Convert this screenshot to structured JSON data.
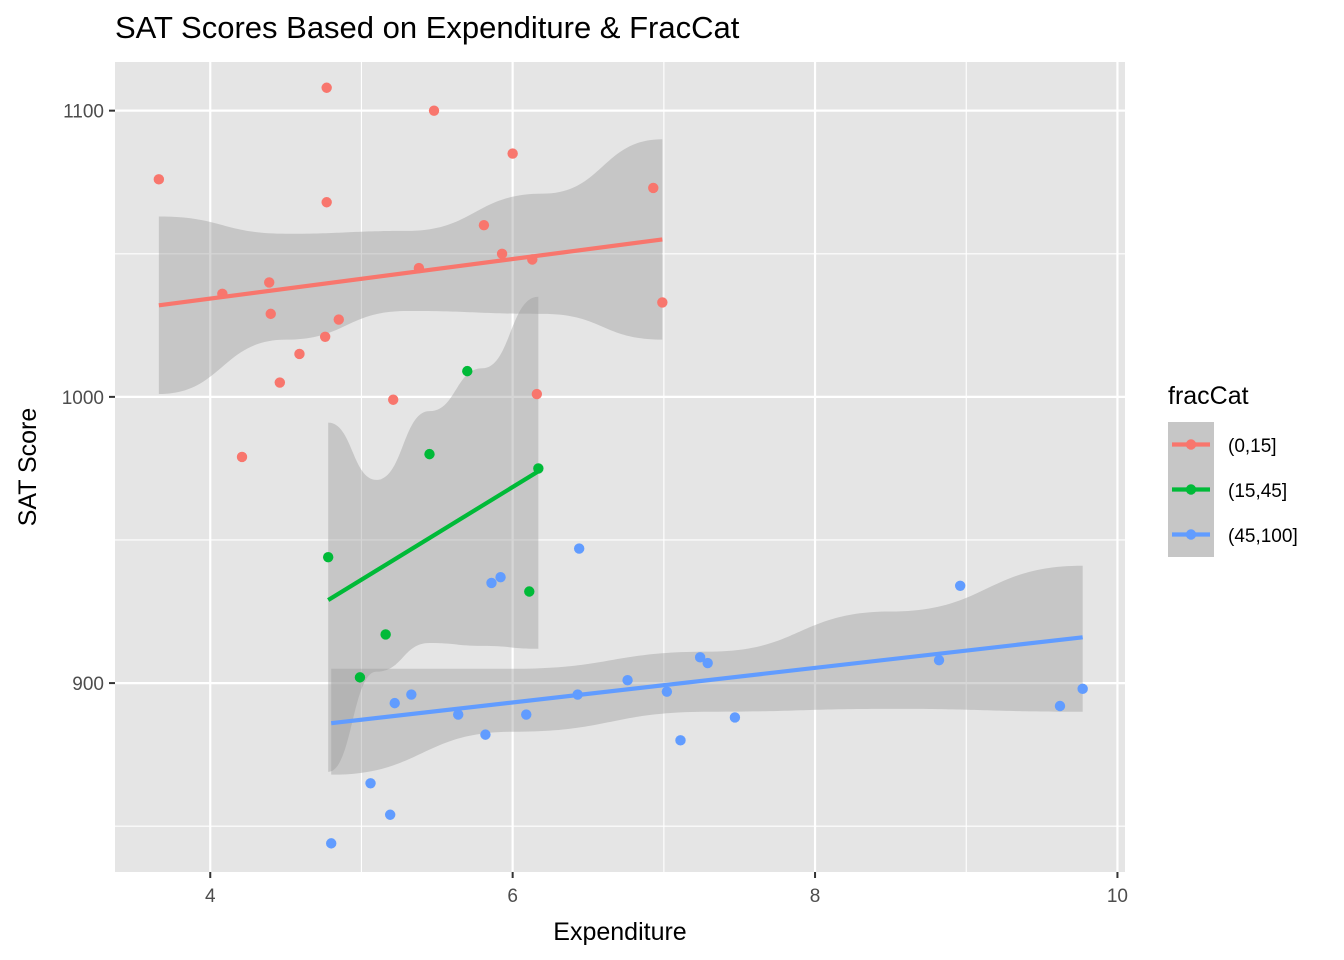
{
  "chart_data": {
    "type": "scatter",
    "title": "SAT Scores Based on Expenditure & FracCat",
    "xlabel": "Expenditure",
    "ylabel": "SAT Score",
    "xlim": [
      3.37,
      10.05
    ],
    "ylim": [
      834,
      1117
    ],
    "x_ticks": [
      4,
      6,
      8,
      10
    ],
    "y_ticks": [
      900,
      1000,
      1100
    ],
    "grid": true,
    "legend_position": "right",
    "legend": {
      "title": "fracCat",
      "entries": [
        "(0,15]",
        "(15,45]",
        "(45,100]"
      ]
    },
    "colors": {
      "panel": "#e5e5e5",
      "grid": "#ffffff",
      "ribbon": "#999999",
      "axis_text": "#4d4d4d"
    },
    "series": [
      {
        "name": "(0,15]",
        "color": "#f8766d",
        "points": [
          [
            3.66,
            1076
          ],
          [
            4.08,
            1036
          ],
          [
            4.21,
            979
          ],
          [
            4.39,
            1040
          ],
          [
            4.4,
            1029
          ],
          [
            4.46,
            1005
          ],
          [
            4.59,
            1015
          ],
          [
            4.76,
            1021
          ],
          [
            4.77,
            1108
          ],
          [
            4.77,
            1068
          ],
          [
            4.85,
            1027
          ],
          [
            5.21,
            999
          ],
          [
            5.38,
            1045
          ],
          [
            5.48,
            1100
          ],
          [
            5.81,
            1060
          ],
          [
            5.93,
            1050
          ],
          [
            6.0,
            1085
          ],
          [
            6.13,
            1048
          ],
          [
            6.16,
            1001
          ],
          [
            6.93,
            1073
          ],
          [
            6.99,
            1033
          ]
        ],
        "fit": {
          "x": [
            3.66,
            6.99
          ],
          "y": [
            1032,
            1055
          ]
        },
        "ribbon": {
          "x": [
            3.66,
            4.5,
            5.3,
            6.2,
            6.99
          ],
          "lower": [
            1001,
            1020,
            1030,
            1029,
            1020
          ],
          "upper": [
            1063,
            1057,
            1058,
            1071,
            1090
          ]
        }
      },
      {
        "name": "(15,45]",
        "color": "#00ba38",
        "points": [
          [
            4.78,
            944
          ],
          [
            4.99,
            902
          ],
          [
            5.16,
            917
          ],
          [
            5.45,
            980
          ],
          [
            5.7,
            1009
          ],
          [
            6.11,
            932
          ],
          [
            6.17,
            975
          ]
        ],
        "fit": {
          "x": [
            4.78,
            6.17
          ],
          "y": [
            929,
            974
          ]
        },
        "ribbon": {
          "x": [
            4.78,
            5.1,
            5.45,
            5.8,
            6.17
          ],
          "lower": [
            869,
            904,
            914,
            913,
            912
          ],
          "upper": [
            991,
            971,
            995,
            1010,
            1035
          ]
        }
      },
      {
        "name": "(45,100]",
        "color": "#619cff",
        "points": [
          [
            4.8,
            844
          ],
          [
            5.06,
            865
          ],
          [
            5.19,
            854
          ],
          [
            5.22,
            893
          ],
          [
            5.33,
            896
          ],
          [
            5.64,
            889
          ],
          [
            5.82,
            882
          ],
          [
            5.86,
            935
          ],
          [
            5.92,
            937
          ],
          [
            6.09,
            889
          ],
          [
            6.43,
            896
          ],
          [
            6.44,
            947
          ],
          [
            6.76,
            901
          ],
          [
            7.02,
            897
          ],
          [
            7.11,
            880
          ],
          [
            7.24,
            909
          ],
          [
            7.29,
            907
          ],
          [
            7.47,
            888
          ],
          [
            8.82,
            908
          ],
          [
            8.96,
            934
          ],
          [
            9.62,
            892
          ],
          [
            9.77,
            898
          ]
        ],
        "fit": {
          "x": [
            4.8,
            9.77
          ],
          "y": [
            886,
            916
          ]
        },
        "ribbon": {
          "x": [
            4.8,
            6.0,
            7.3,
            8.5,
            9.77
          ],
          "lower": [
            868,
            883,
            890,
            891,
            890
          ],
          "upper": [
            905,
            905,
            911,
            925,
            941
          ]
        }
      }
    ]
  }
}
